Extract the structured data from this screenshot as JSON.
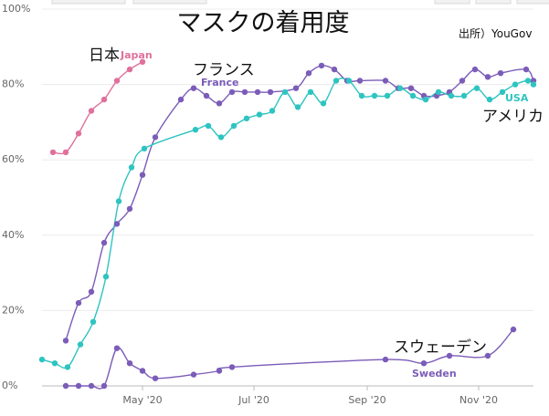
{
  "chart_data": {
    "type": "line",
    "title": "マスクの着用度",
    "source": "出所）YouGov",
    "y_ticks": [
      "100%",
      "80%",
      "60%",
      "40%",
      "20%",
      "0%"
    ],
    "x_ticks": [
      "May '20",
      "Jul '20",
      "Sep '20",
      "Nov '20"
    ],
    "ylim": [
      0,
      100
    ],
    "xlim": [
      "2020-03-07",
      "2020-12-01"
    ],
    "grid": true,
    "series": [
      {
        "name": "Japan",
        "label_jp": "日本",
        "color": "#e0709c",
        "x": [
          "2020-03-13",
          "2020-03-20",
          "2020-03-27",
          "2020-04-03",
          "2020-04-10",
          "2020-04-17",
          "2020-04-24",
          "2020-05-01"
        ],
        "values": [
          62,
          62,
          67,
          73,
          76,
          81,
          84,
          86
        ]
      },
      {
        "name": "France",
        "label_jp": "フランス",
        "color": "#7b5cb8",
        "x": [
          "2020-03-20",
          "2020-03-27",
          "2020-04-03",
          "2020-04-10",
          "2020-04-17",
          "2020-04-24",
          "2020-05-01",
          "2020-05-08",
          "2020-05-22",
          "2020-05-29",
          "2020-06-05",
          "2020-06-12",
          "2020-06-19",
          "2020-06-26",
          "2020-07-03",
          "2020-07-10",
          "2020-07-24",
          "2020-07-31",
          "2020-08-07",
          "2020-08-14",
          "2020-08-21",
          "2020-08-28",
          "2020-09-11",
          "2020-09-18",
          "2020-09-25",
          "2020-10-02",
          "2020-10-09",
          "2020-10-16",
          "2020-10-23",
          "2020-10-30",
          "2020-11-06",
          "2020-11-13",
          "2020-11-27",
          "2020-12-01"
        ],
        "values": [
          12,
          22,
          25,
          38,
          43,
          47,
          56,
          66,
          76,
          79,
          77,
          75,
          78,
          78,
          78,
          78,
          79,
          83,
          85,
          84,
          81,
          81,
          81,
          79,
          79,
          77,
          77,
          78,
          81,
          84,
          82,
          83,
          84,
          81
        ]
      },
      {
        "name": "USA",
        "label_jp": "アメリカ",
        "color": "#2ec4c0",
        "x": [
          "2020-03-07",
          "2020-03-14",
          "2020-03-21",
          "2020-03-28",
          "2020-04-04",
          "2020-04-11",
          "2020-04-18",
          "2020-04-25",
          "2020-05-02",
          "2020-05-30",
          "2020-06-06",
          "2020-06-13",
          "2020-06-20",
          "2020-06-27",
          "2020-07-04",
          "2020-07-11",
          "2020-07-18",
          "2020-07-25",
          "2020-08-01",
          "2020-08-08",
          "2020-08-15",
          "2020-08-22",
          "2020-08-29",
          "2020-09-05",
          "2020-09-12",
          "2020-09-19",
          "2020-09-26",
          "2020-10-03",
          "2020-10-10",
          "2020-10-17",
          "2020-10-24",
          "2020-10-31",
          "2020-11-07",
          "2020-11-14",
          "2020-11-21",
          "2020-11-28",
          "2020-12-01"
        ],
        "values": [
          7,
          6,
          5,
          11,
          17,
          29,
          49,
          58,
          63,
          68,
          69,
          66,
          69,
          71,
          72,
          73,
          78,
          74,
          78,
          75,
          81,
          81,
          77,
          77,
          77,
          79,
          77,
          76,
          78,
          77,
          77,
          79,
          76,
          78,
          80,
          81,
          80
        ]
      },
      {
        "name": "Sweden",
        "label_jp": "スウェーデン",
        "color": "#7b5cb8",
        "x": [
          "2020-03-20",
          "2020-03-27",
          "2020-04-03",
          "2020-04-10",
          "2020-04-17",
          "2020-04-24",
          "2020-05-01",
          "2020-05-08",
          "2020-05-29",
          "2020-06-12",
          "2020-06-19",
          "2020-09-11",
          "2020-10-02",
          "2020-10-16",
          "2020-11-06",
          "2020-11-20"
        ],
        "values": [
          0,
          0,
          0,
          0,
          10,
          6,
          4,
          2,
          3,
          4,
          5,
          7,
          6,
          8,
          8,
          15
        ]
      }
    ]
  }
}
